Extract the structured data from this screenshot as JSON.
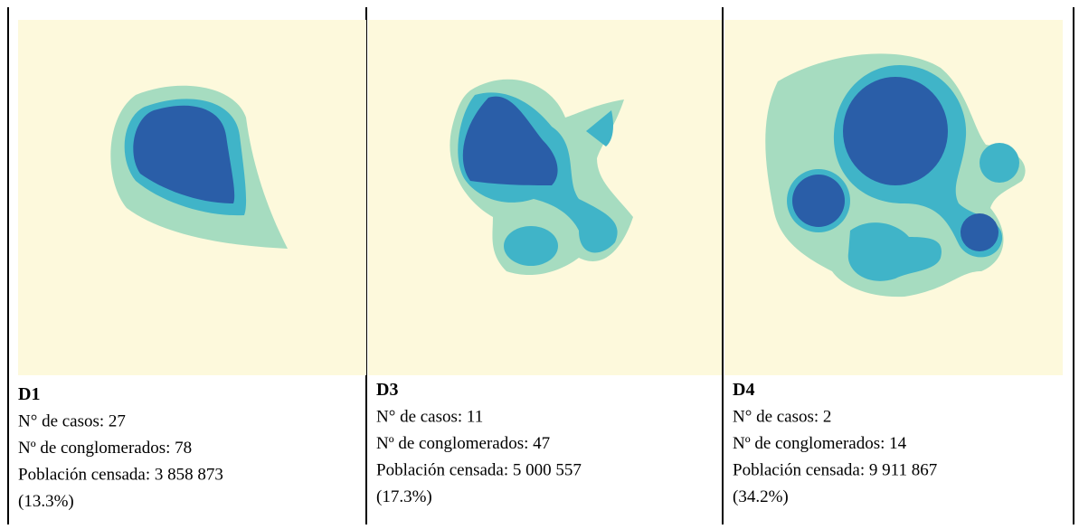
{
  "panels": [
    {
      "label": "D1",
      "cases": "N° de casos: 27",
      "clusters": "Nº de conglomerados: 78",
      "population": "Población censada: 3 858 873",
      "percent": "(13.3%)"
    },
    {
      "label": "D3",
      "cases": "N° de casos: 11",
      "clusters": "Nº de conglomerados: 47",
      "population": "Población censada: 5 000 557",
      "percent": "(17.3%)"
    },
    {
      "label": "D4",
      "cases": "N° de casos: 2",
      "clusters": "Nº de conglomerados: 14",
      "population": "Población censada: 9 911 867",
      "percent": "(34.2%)"
    }
  ]
}
